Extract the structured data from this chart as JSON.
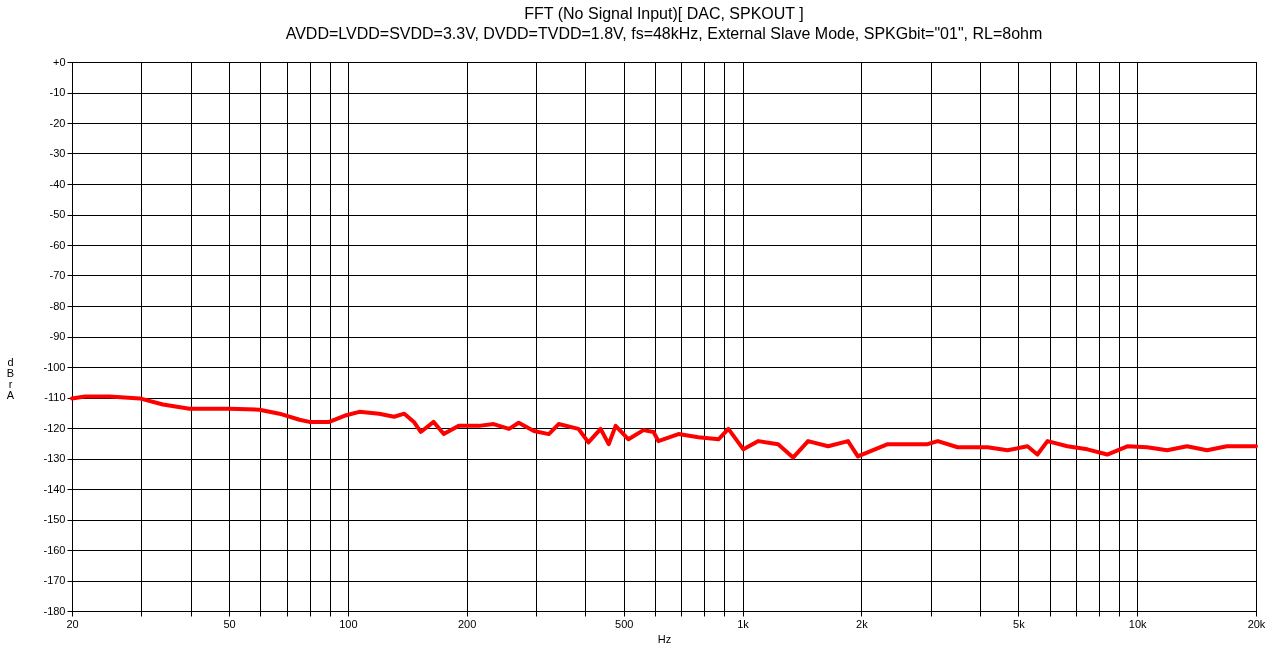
{
  "chart_data": {
    "type": "line",
    "title": "FFT (No Signal Input)[ DAC, SPKOUT ]",
    "subtitle": "AVDD=LVDD=SVDD=3.3V, DVDD=TVDD=1.8V, fs=48kHz, External Slave Mode, SPKGbit=\"01\", RL=8ohm",
    "xlabel": "Hz",
    "ylabel": "dBr A",
    "log": "x",
    "grid": true,
    "line_style": "solid",
    "marker": "none",
    "xlim": [
      20,
      20000
    ],
    "xticks": [
      20,
      {
        "value": 30,
        "label": null
      },
      {
        "value": 40,
        "label": null
      },
      50,
      {
        "value": 60,
        "label": null
      },
      {
        "value": 70,
        "label": null
      },
      {
        "value": 80,
        "label": null
      },
      {
        "value": 90,
        "label": null
      },
      100,
      200,
      {
        "value": 300,
        "label": null
      },
      {
        "value": 400,
        "label": null
      },
      500,
      {
        "value": 600,
        "label": null
      },
      {
        "value": 700,
        "label": null
      },
      {
        "value": 800,
        "label": null
      },
      {
        "value": 900,
        "label": null
      },
      {
        "value": 1000,
        "label": "1k"
      },
      {
        "value": 2000,
        "label": "2k"
      },
      {
        "value": 3000,
        "label": null
      },
      {
        "value": 4000,
        "label": null
      },
      {
        "value": 5000,
        "label": "5k"
      },
      {
        "value": 6000,
        "label": null
      },
      {
        "value": 7000,
        "label": null
      },
      {
        "value": 8000,
        "label": null
      },
      {
        "value": 9000,
        "label": null
      },
      {
        "value": 10000,
        "label": "10k"
      },
      {
        "value": 20000,
        "label": "20k"
      }
    ],
    "ylim": [
      -180,
      0
    ],
    "yticks": [
      -180,
      -170,
      -160,
      -150,
      -140,
      -130,
      -120,
      -110,
      -100,
      -90,
      -80,
      -70,
      -60,
      -50,
      -40,
      -30,
      -20,
      -10,
      {
        "value": 0,
        "label": "+0"
      }
    ],
    "series": [
      {
        "color": "#ff0000",
        "x": [
          20,
          21.6,
          24.9,
          29.7,
          34,
          39.7,
          50.1,
          59.7,
          67.1,
          75.4,
          79.9,
          89.7,
          98,
          106.9,
          120,
          131,
          139,
          147,
          153,
          165,
          175,
          191,
          215,
          234,
          256,
          271,
          296,
          323,
          342,
          384,
          407,
          437,
          458,
          477,
          514,
          561,
          595,
          612,
          688,
          773,
          869,
          921,
          1005,
          1097,
          1231,
          1343,
          1466,
          1648,
          1850,
          1960,
          2333,
          2945,
          3125,
          3508,
          4178,
          4691,
          5272,
          5587,
          5925,
          6655,
          7478,
          8397,
          9441,
          10600,
          11910,
          13370,
          15030,
          16870,
          20000
        ],
        "values": [
          -110.3,
          -109.7,
          -109.7,
          -110.3,
          -112.3,
          -113.7,
          -113.7,
          -114,
          -115.3,
          -117.3,
          -118,
          -118,
          -116,
          -114.7,
          -115.3,
          -116.3,
          -115.3,
          -118,
          -121.3,
          -118,
          -122,
          -119.3,
          -119.3,
          -118.7,
          -120.3,
          -118.3,
          -121,
          -122,
          -118.7,
          -120.3,
          -124.7,
          -120.3,
          -125.3,
          -119.3,
          -123.7,
          -120.7,
          -121.3,
          -124.3,
          -122,
          -123,
          -123.7,
          -120.3,
          -127,
          -124.3,
          -125.3,
          -129.7,
          -124.3,
          -126,
          -124.3,
          -129.3,
          -125.3,
          -125.3,
          -124.3,
          -126.3,
          -126.3,
          -127.3,
          -126,
          -128.7,
          -124.3,
          -126,
          -127,
          -128.7,
          -126,
          -126.3,
          -127.3,
          -126,
          -127.3,
          -126,
          -126
        ]
      }
    ]
  }
}
